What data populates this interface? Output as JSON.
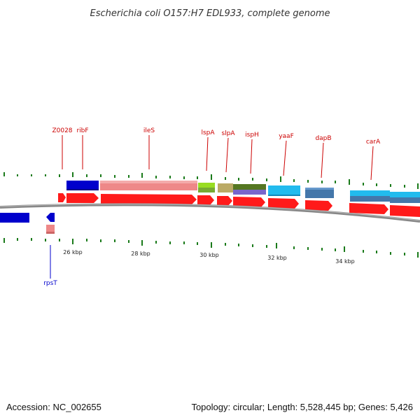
{
  "title": "Escherichia coli O157:H7 EDL933, complete genome",
  "footer": {
    "accession": "Accession: NC_002655",
    "topology": "Topology: circular; Length: 5,528,445 bp; Genes: 5,426"
  },
  "colors": {
    "forward_label": "#cc0000",
    "reverse_label": "#0000cc",
    "cds": "#ff1a1a",
    "tick": "#1a7a1a",
    "backbone": "#888888"
  },
  "ticks": [
    "26 kbp",
    "28 kbp",
    "30 kbp",
    "32 kbp",
    "34 kbp"
  ],
  "genes_forward": [
    {
      "name": "Z0028",
      "color": "#ff1a1a"
    },
    {
      "name": "ribF",
      "color": "#0000cc"
    },
    {
      "name": "ileS",
      "color": "#ee8888"
    },
    {
      "name": "lspA",
      "color": "#99dd22"
    },
    {
      "name": "slpA",
      "color": "#bbaa66"
    },
    {
      "name": "ispH",
      "color": "#557722"
    },
    {
      "name": "yaaF",
      "color": "#22bbee"
    },
    {
      "name": "dapB",
      "color": "#4477aa"
    },
    {
      "name": "carA",
      "color": "#22aadd"
    }
  ],
  "genes_reverse": [
    {
      "name": "rpsT",
      "color": "#ee8888"
    }
  ]
}
